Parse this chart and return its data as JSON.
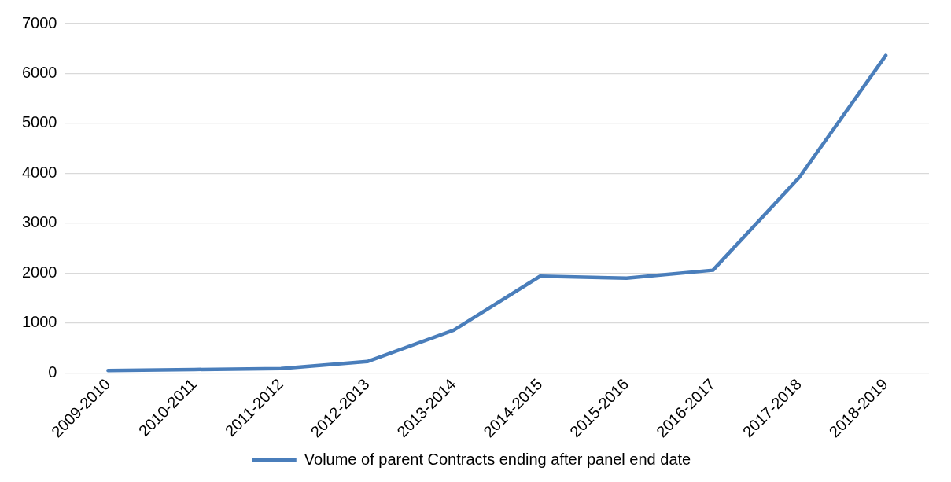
{
  "chart_data": {
    "type": "line",
    "categories": [
      "2009-2010",
      "2010-2011",
      "2011-2012",
      "2012-2013",
      "2013-2014",
      "2014-2015",
      "2015-2016",
      "2016-2017",
      "2017-2018",
      "2018-2019"
    ],
    "series": [
      {
        "name": "Volume of parent Contracts ending after panel end date",
        "color": "#4a7ebb",
        "values": [
          50,
          70,
          90,
          230,
          860,
          1940,
          1900,
          2060,
          3920,
          6360
        ]
      }
    ],
    "ylim": [
      0,
      7000
    ],
    "yticks": [
      0,
      1000,
      2000,
      3000,
      4000,
      5000,
      6000,
      7000
    ],
    "grid": "y",
    "legend": "bottom",
    "marker": "none",
    "line_style": "solid"
  }
}
